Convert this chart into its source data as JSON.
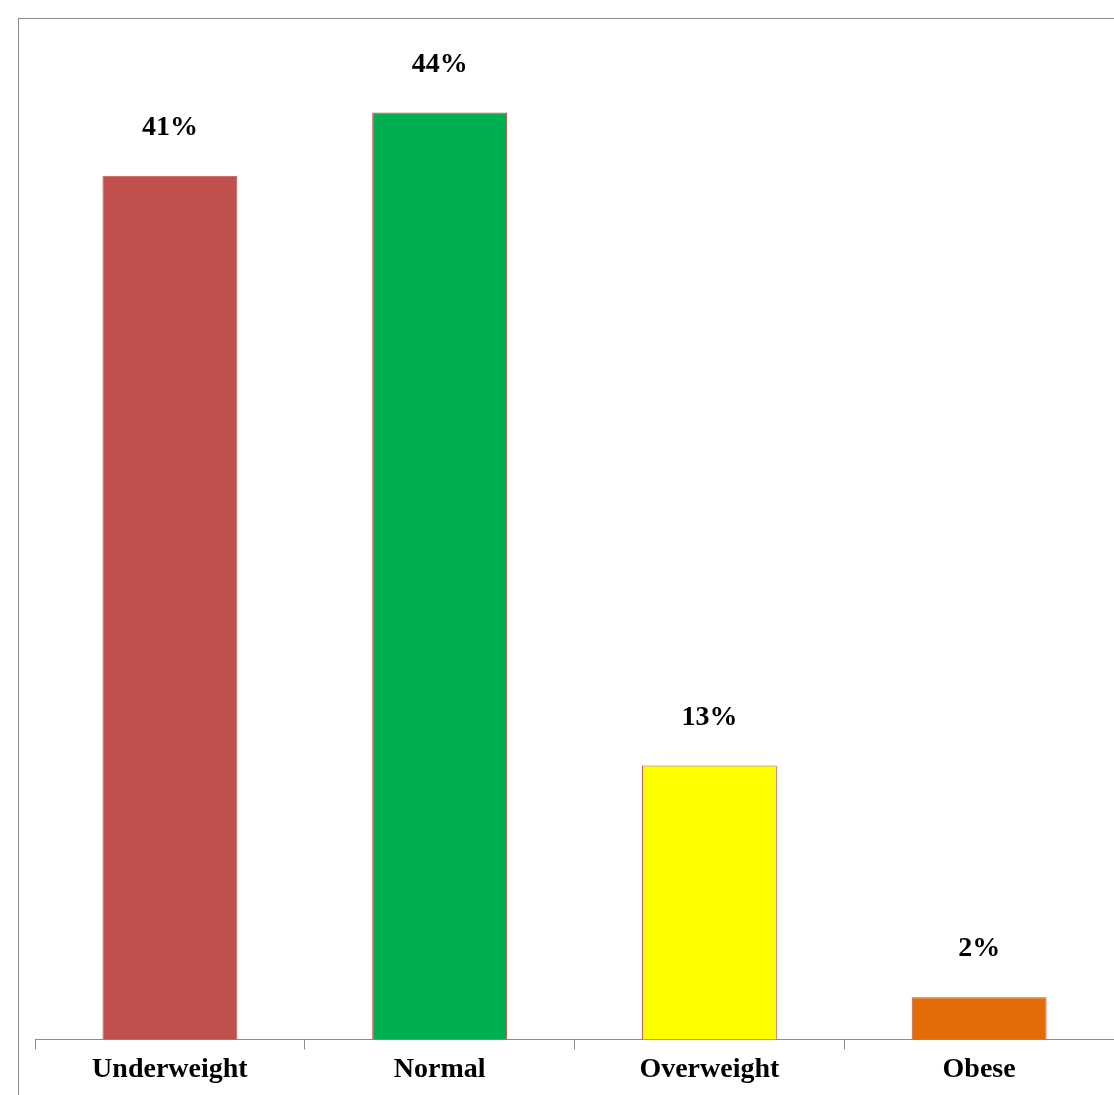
{
  "chart_data": {
    "type": "bar",
    "categories": [
      "Underweight",
      "Normal",
      "Overweight",
      "Obese"
    ],
    "values": [
      41,
      44,
      13,
      2
    ],
    "value_labels": [
      "41%",
      "44%",
      "13%",
      "2%"
    ],
    "colors": [
      "#c0504d",
      "#00b050",
      "#ffff00",
      "#e36c09"
    ],
    "grid": false,
    "legend": false
  }
}
